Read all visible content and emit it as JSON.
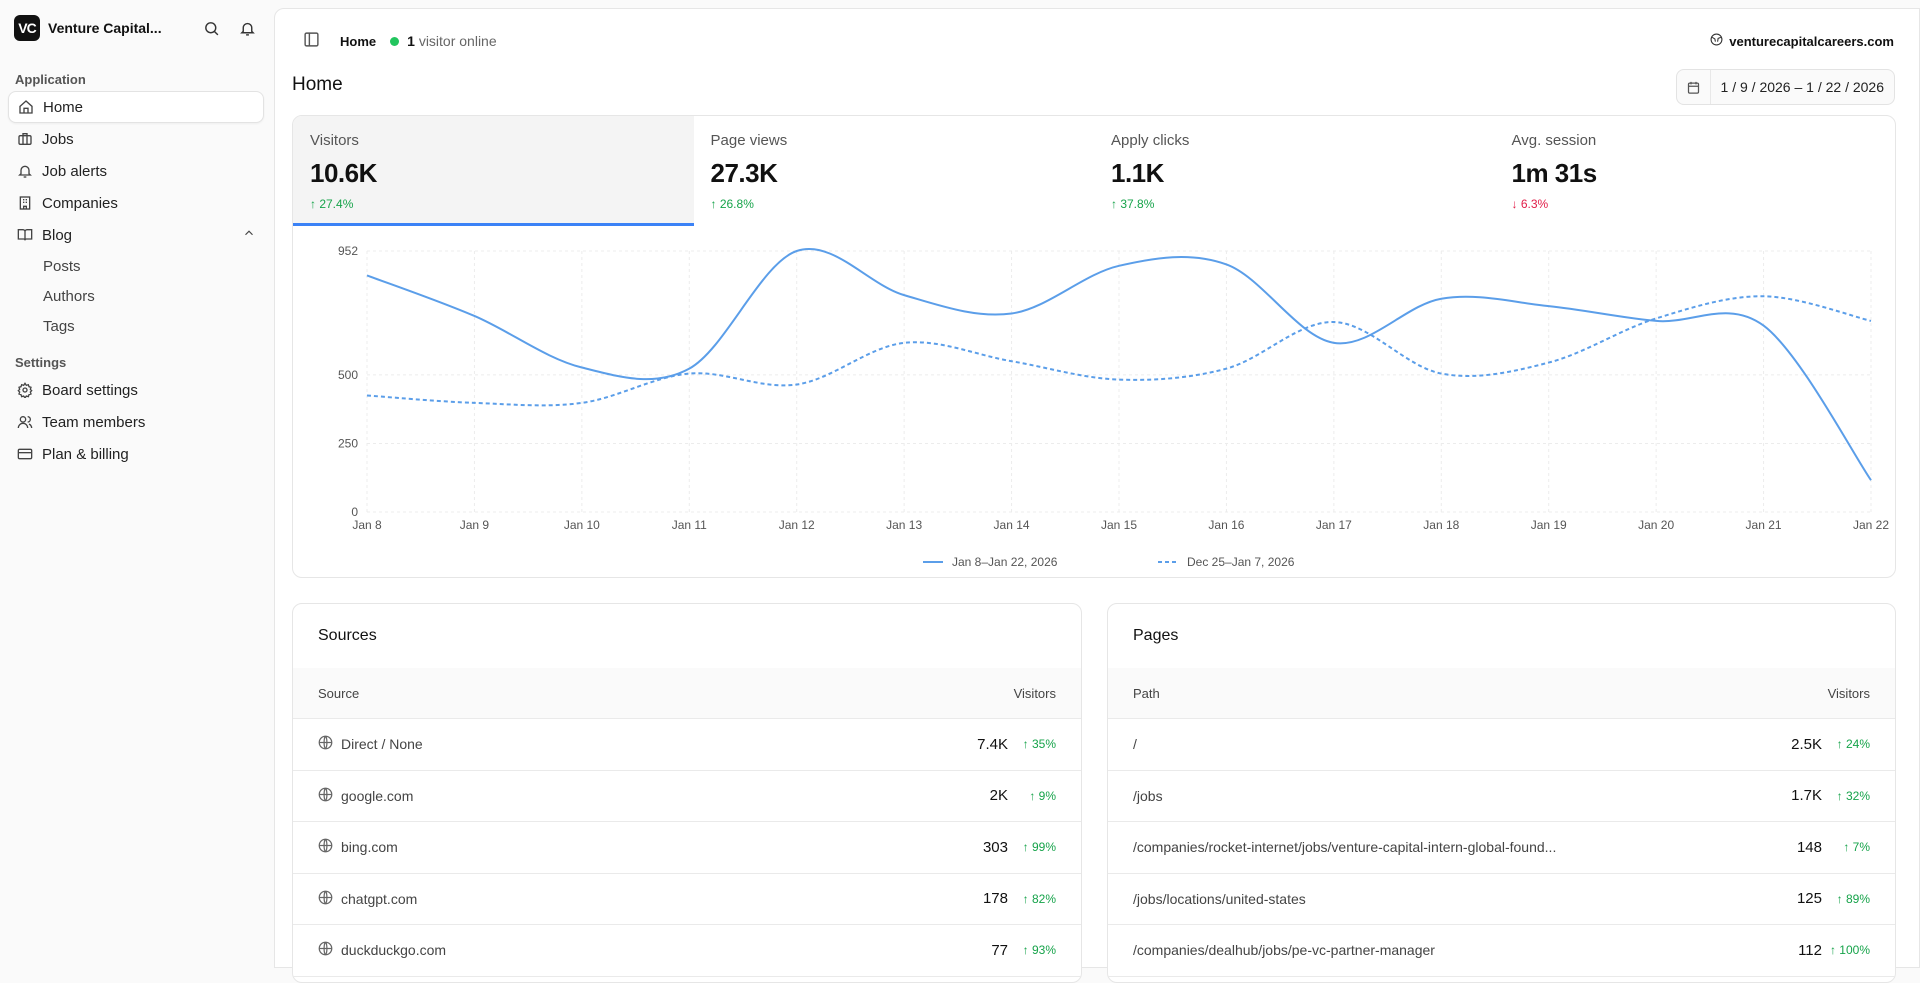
{
  "sidebar": {
    "brand": "Venture Capital...",
    "logo": "VC",
    "groups": [
      {
        "label": "Application"
      },
      {
        "label": "Settings"
      }
    ],
    "items": [
      {
        "label": "Home"
      },
      {
        "label": "Jobs"
      },
      {
        "label": "Job alerts"
      },
      {
        "label": "Companies"
      },
      {
        "label": "Blog"
      }
    ],
    "blog_sub": [
      {
        "label": "Posts"
      },
      {
        "label": "Authors"
      },
      {
        "label": "Tags"
      }
    ],
    "settings": [
      {
        "label": "Board settings"
      },
      {
        "label": "Team members"
      },
      {
        "label": "Plan & billing"
      }
    ]
  },
  "topbar": {
    "crumb": "Home",
    "online_count": "1",
    "online_text": "visitor online",
    "site": "venturecapitalcareers.com"
  },
  "page": {
    "title": "Home",
    "date_range": "1 / 9 / 2026 – 1 / 22 / 2026"
  },
  "stats": [
    {
      "label": "Visitors",
      "value": "10.6K",
      "change": "↑ 27.4%",
      "dir": "up"
    },
    {
      "label": "Page views",
      "value": "27.3K",
      "change": "↑ 26.8%",
      "dir": "up"
    },
    {
      "label": "Apply clicks",
      "value": "1.1K",
      "change": "↑ 37.8%",
      "dir": "up"
    },
    {
      "label": "Avg. session",
      "value": "1m 31s",
      "change": "↓ 6.3%",
      "dir": "down"
    }
  ],
  "chart_data": {
    "type": "line",
    "x": [
      "Jan 8",
      "Jan 9",
      "Jan 10",
      "Jan 11",
      "Jan 12",
      "Jan 13",
      "Jan 14",
      "Jan 15",
      "Jan 16",
      "Jan 17",
      "Jan 18",
      "Jan 19",
      "Jan 20",
      "Jan 21",
      "Jan 22"
    ],
    "yticks": [
      0,
      250,
      500,
      952
    ],
    "ylim": [
      0,
      952
    ],
    "series": [
      {
        "name": "Jan 8–Jan 22, 2026",
        "style": "solid",
        "color": "#5b9ee9",
        "values": [
          863,
          715,
          527,
          523,
          952,
          791,
          724,
          898,
          903,
          617,
          778,
          751,
          697,
          680,
          116
        ]
      },
      {
        "name": "Dec 25–Jan 7, 2026",
        "style": "dashed",
        "color": "#5b9ee9",
        "values": [
          425,
          398,
          398,
          505,
          465,
          617,
          550,
          483,
          523,
          693,
          505,
          545,
          706,
          787,
          697
        ]
      }
    ]
  },
  "sources": {
    "title": "Sources",
    "col1": "Source",
    "col2": "Visitors",
    "rows": [
      {
        "name": "Direct / None",
        "value": "7.4K",
        "change": "↑ 35%"
      },
      {
        "name": "google.com",
        "value": "2K",
        "change": "↑ 9%"
      },
      {
        "name": "bing.com",
        "value": "303",
        "change": "↑ 99%"
      },
      {
        "name": "chatgpt.com",
        "value": "178",
        "change": "↑ 82%"
      },
      {
        "name": "duckduckgo.com",
        "value": "77",
        "change": "↑ 93%"
      }
    ]
  },
  "pages": {
    "title": "Pages",
    "col1": "Path",
    "col2": "Visitors",
    "rows": [
      {
        "name": "/",
        "value": "2.5K",
        "change": "↑ 24%"
      },
      {
        "name": "/jobs",
        "value": "1.7K",
        "change": "↑ 32%"
      },
      {
        "name": "/companies/rocket-internet/jobs/venture-capital-intern-global-found...",
        "value": "148",
        "change": "↑ 7%"
      },
      {
        "name": "/jobs/locations/united-states",
        "value": "125",
        "change": "↑ 89%"
      },
      {
        "name": "/companies/dealhub/jobs/pe-vc-partner-manager",
        "value": "112",
        "change": "↑ 100%"
      }
    ]
  }
}
